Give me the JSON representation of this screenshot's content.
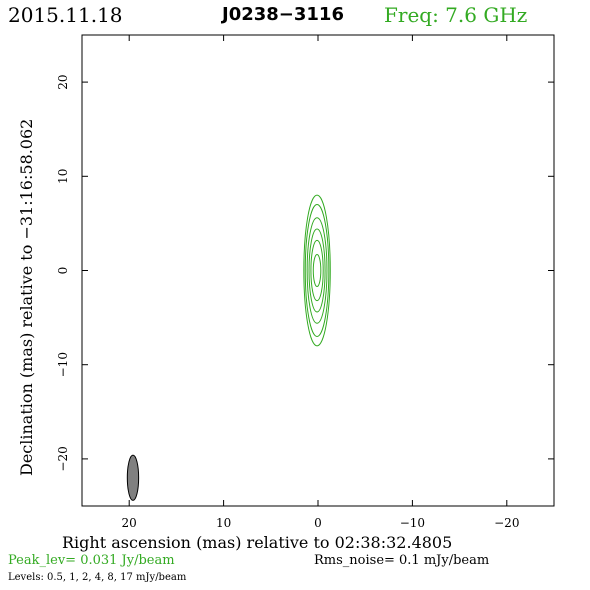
{
  "header": {
    "date": "2015.11.18",
    "source": "J0238−3116",
    "frequency": "Freq: 7.6 GHz"
  },
  "colors": {
    "contour": "#33aa22",
    "frequency_text": "#33aa22",
    "peak_text": "#33aa22",
    "beam_fill": "#808080"
  },
  "chart_data": {
    "type": "contour",
    "xlabel": "Right ascension (mas) relative to 02:38:32.4805",
    "ylabel": "Declination (mas) relative to −31:16:58.062",
    "xlim": [
      25,
      -25
    ],
    "ylim": [
      -25,
      25
    ],
    "xticks": [
      20,
      10,
      0,
      -10,
      -20
    ],
    "xtick_labels": [
      "20",
      "10",
      "0",
      "−10",
      "−20"
    ],
    "yticks": [
      20,
      10,
      0,
      -10,
      -20
    ],
    "ytick_labels": [
      "20",
      "10",
      "0",
      "−10",
      "−20"
    ],
    "contour_center": [
      0.1,
      0.0
    ],
    "contours": [
      {
        "level": 0.5,
        "semi_major": 8.0,
        "semi_minor": 1.4
      },
      {
        "level": 1,
        "semi_major": 7.0,
        "semi_minor": 1.25
      },
      {
        "level": 2,
        "semi_major": 5.6,
        "semi_minor": 1.05
      },
      {
        "level": 4,
        "semi_major": 4.4,
        "semi_minor": 0.85
      },
      {
        "level": 8,
        "semi_major": 3.2,
        "semi_minor": 0.65
      },
      {
        "level": 17,
        "semi_major": 1.7,
        "semi_minor": 0.4
      }
    ],
    "beam": {
      "x": 19.6,
      "y": -22.0,
      "semi_major": 2.4,
      "semi_minor": 0.6
    }
  },
  "footer": {
    "peak": "Peak_lev=  0.031 Jy/beam",
    "rms": "Rms_noise=   0.1 mJy/beam",
    "levels": "Levels: 0.5,    1,    2,    4,    8,   17 mJy/beam"
  }
}
